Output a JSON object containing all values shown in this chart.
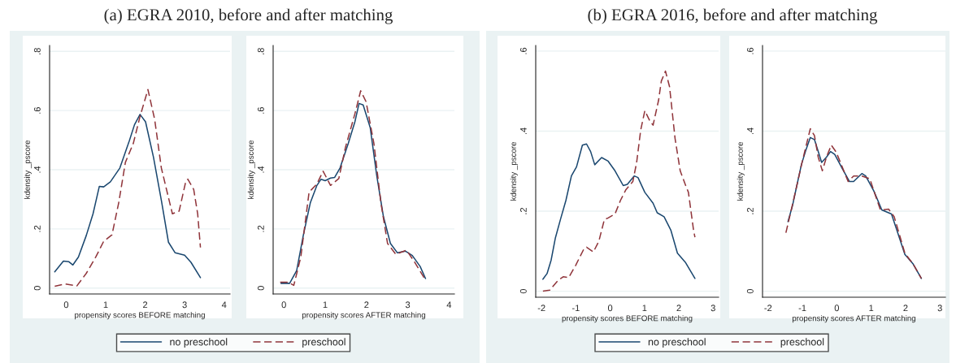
{
  "chart_data": [
    {
      "type": "line",
      "title": "(a) EGRA 2010, before and after matching",
      "xlabel": "propensity scores BEFORE matching",
      "ylabel": "kdensity _pscore",
      "xlim": [
        -0.42,
        4.15
      ],
      "ylim": [
        -0.02,
        0.82
      ],
      "xticks": [
        0,
        1,
        2,
        3,
        4
      ],
      "yticks": [
        0,
        {
          "value": 0.2,
          "label": ".2"
        },
        {
          "value": 0.4,
          "label": ".4"
        },
        {
          "value": 0.6,
          "label": ".6"
        },
        {
          "value": 0.8,
          "label": ".8"
        }
      ],
      "grid": "y",
      "legend": "bottom",
      "series": [
        {
          "name": "no preschool",
          "color": "#1a476f",
          "line_style": "solid",
          "x": [
            -0.29,
            -0.07,
            0.07,
            0.17,
            0.31,
            0.51,
            0.68,
            0.84,
            0.95,
            1.12,
            1.36,
            1.6,
            1.73,
            1.87,
            2.01,
            2.21,
            2.41,
            2.59,
            2.76,
            3.0,
            3.16,
            3.4
          ],
          "values": [
            0.055,
            0.091,
            0.089,
            0.078,
            0.105,
            0.178,
            0.251,
            0.344,
            0.342,
            0.359,
            0.406,
            0.498,
            0.552,
            0.587,
            0.562,
            0.443,
            0.297,
            0.155,
            0.119,
            0.111,
            0.087,
            0.035
          ]
        },
        {
          "name": "preschool",
          "color": "#90353b",
          "line_style": "dashed",
          "x": [
            -0.29,
            -0.03,
            0.27,
            0.51,
            0.75,
            0.95,
            1.16,
            1.33,
            1.5,
            1.7,
            1.87,
            2.07,
            2.24,
            2.41,
            2.59,
            2.69,
            2.86,
            3.03,
            3.08,
            3.23,
            3.33,
            3.4
          ],
          "values": [
            0.006,
            0.014,
            0.007,
            0.05,
            0.105,
            0.158,
            0.18,
            0.288,
            0.425,
            0.489,
            0.58,
            0.671,
            0.571,
            0.406,
            0.306,
            0.251,
            0.26,
            0.361,
            0.368,
            0.333,
            0.251,
            0.137
          ]
        }
      ]
    },
    {
      "type": "line",
      "xlabel": "propensity scores AFTER matching",
      "ylabel": "kdensity _pscore",
      "xlim": [
        -0.26,
        4.13
      ],
      "ylim": [
        -0.02,
        0.82
      ],
      "xticks": [
        0,
        1,
        2,
        3,
        4
      ],
      "yticks": [
        0,
        {
          "value": 0.2,
          "label": ".2"
        },
        {
          "value": 0.4,
          "label": ".4"
        },
        {
          "value": 0.6,
          "label": ".6"
        },
        {
          "value": 0.8,
          "label": ".8"
        }
      ],
      "grid": "y",
      "series": [
        {
          "color": "#1a476f",
          "line_style": "solid",
          "x": [
            -0.07,
            0.14,
            0.31,
            0.47,
            0.64,
            0.8,
            0.9,
            1.0,
            1.13,
            1.23,
            1.36,
            1.56,
            1.72,
            1.82,
            1.92,
            2.09,
            2.25,
            2.41,
            2.58,
            2.75,
            2.94,
            3.11,
            3.3,
            3.43
          ],
          "values": [
            0.016,
            0.016,
            0.059,
            0.178,
            0.288,
            0.347,
            0.368,
            0.363,
            0.372,
            0.374,
            0.406,
            0.489,
            0.562,
            0.624,
            0.619,
            0.543,
            0.379,
            0.242,
            0.151,
            0.119,
            0.125,
            0.11,
            0.073,
            0.032
          ]
        },
        {
          "color": "#90353b",
          "line_style": "dashed",
          "x": [
            -0.09,
            0.11,
            0.24,
            0.41,
            0.61,
            0.8,
            0.95,
            1.13,
            1.33,
            1.49,
            1.72,
            1.86,
            1.99,
            2.18,
            2.35,
            2.51,
            2.71,
            2.97,
            3.17,
            3.43
          ],
          "values": [
            0.02,
            0.02,
            0.009,
            0.105,
            0.324,
            0.352,
            0.395,
            0.347,
            0.37,
            0.475,
            0.589,
            0.667,
            0.63,
            0.489,
            0.288,
            0.151,
            0.114,
            0.128,
            0.087,
            0.027
          ]
        }
      ]
    },
    {
      "type": "line",
      "title": "(b) EGRA 2016, before and after matching",
      "xlabel": "propensity scores BEFORE matching",
      "ylabel": "kdensity _pscore",
      "xlim": [
        -2.17,
        3.16
      ],
      "ylim": [
        -0.015,
        0.614
      ],
      "xticks": [
        -2,
        -1,
        0,
        1,
        2,
        3
      ],
      "yticks": [
        0,
        {
          "value": 0.2,
          "label": ".2"
        },
        {
          "value": 0.4,
          "label": ".4"
        },
        {
          "value": 0.6,
          "label": ".6"
        }
      ],
      "grid": "y",
      "legend": "bottom",
      "series": [
        {
          "name": "no preschool",
          "color": "#1a476f",
          "line_style": "solid",
          "x": [
            -1.96,
            -1.84,
            -1.72,
            -1.6,
            -1.45,
            -1.29,
            -1.13,
            -0.98,
            -0.81,
            -0.69,
            -0.57,
            -0.45,
            -0.25,
            -0.06,
            0.14,
            0.38,
            0.5,
            0.7,
            0.81,
            1.01,
            1.25,
            1.37,
            1.57,
            1.77,
            1.96,
            2.2,
            2.47
          ],
          "values": [
            0.03,
            0.044,
            0.078,
            0.132,
            0.179,
            0.227,
            0.288,
            0.311,
            0.365,
            0.368,
            0.349,
            0.316,
            0.334,
            0.325,
            0.301,
            0.264,
            0.267,
            0.288,
            0.284,
            0.247,
            0.22,
            0.196,
            0.186,
            0.152,
            0.095,
            0.071,
            0.032
          ]
        },
        {
          "name": "preschool",
          "color": "#90353b",
          "line_style": "dashed",
          "x": [
            -1.96,
            -1.76,
            -1.52,
            -1.37,
            -1.21,
            -1.01,
            -0.77,
            -0.69,
            -0.49,
            -0.33,
            -0.17,
            -0.06,
            0.14,
            0.3,
            0.46,
            0.66,
            0.77,
            0.89,
            1.01,
            1.17,
            1.25,
            1.41,
            1.49,
            1.61,
            1.73,
            1.89,
            2.04,
            2.2,
            2.28,
            2.43,
            2.47
          ],
          "values": [
            0.0,
            0.003,
            0.027,
            0.036,
            0.034,
            0.064,
            0.105,
            0.11,
            0.098,
            0.125,
            0.179,
            0.183,
            0.193,
            0.227,
            0.254,
            0.274,
            0.321,
            0.403,
            0.451,
            0.423,
            0.415,
            0.477,
            0.525,
            0.55,
            0.511,
            0.382,
            0.301,
            0.264,
            0.247,
            0.152,
            0.135
          ]
        }
      ]
    },
    {
      "type": "line",
      "xlabel": "propensity scores AFTER matching",
      "ylabel": "kdensity _pscore",
      "xlim": [
        -2.16,
        3.16
      ],
      "ylim": [
        -0.015,
        0.614
      ],
      "xticks": [
        -2,
        -1,
        0,
        1,
        2,
        3
      ],
      "yticks": [
        0,
        {
          "value": 0.2,
          "label": ".2"
        },
        {
          "value": 0.4,
          "label": ".4"
        },
        {
          "value": 0.6,
          "label": ".6"
        }
      ],
      "grid": "y",
      "series": [
        {
          "color": "#1a476f",
          "line_style": "solid",
          "x": [
            -1.42,
            -1.29,
            -1.17,
            -1.03,
            -0.89,
            -0.77,
            -0.65,
            -0.54,
            -0.44,
            -0.3,
            -0.18,
            -0.06,
            0.17,
            0.37,
            0.49,
            0.73,
            0.84,
            1.08,
            1.31,
            1.59,
            1.75,
            1.98,
            2.22,
            2.46
          ],
          "values": [
            0.174,
            0.213,
            0.261,
            0.316,
            0.355,
            0.384,
            0.379,
            0.349,
            0.322,
            0.335,
            0.349,
            0.342,
            0.305,
            0.274,
            0.274,
            0.294,
            0.288,
            0.25,
            0.203,
            0.193,
            0.152,
            0.092,
            0.068,
            0.032
          ]
        },
        {
          "color": "#90353b",
          "line_style": "dashed",
          "x": [
            -1.48,
            -1.33,
            -1.17,
            -1.01,
            -0.77,
            -0.65,
            -0.54,
            -0.42,
            -0.3,
            -0.16,
            -0.02,
            0.17,
            0.33,
            0.49,
            0.73,
            0.96,
            1.12,
            1.27,
            1.51,
            1.67,
            1.98,
            2.22,
            2.46
          ],
          "values": [
            0.146,
            0.201,
            0.261,
            0.322,
            0.406,
            0.389,
            0.335,
            0.301,
            0.335,
            0.365,
            0.348,
            0.308,
            0.274,
            0.288,
            0.288,
            0.281,
            0.24,
            0.203,
            0.205,
            0.186,
            0.095,
            0.068,
            0.032
          ]
        }
      ]
    }
  ]
}
